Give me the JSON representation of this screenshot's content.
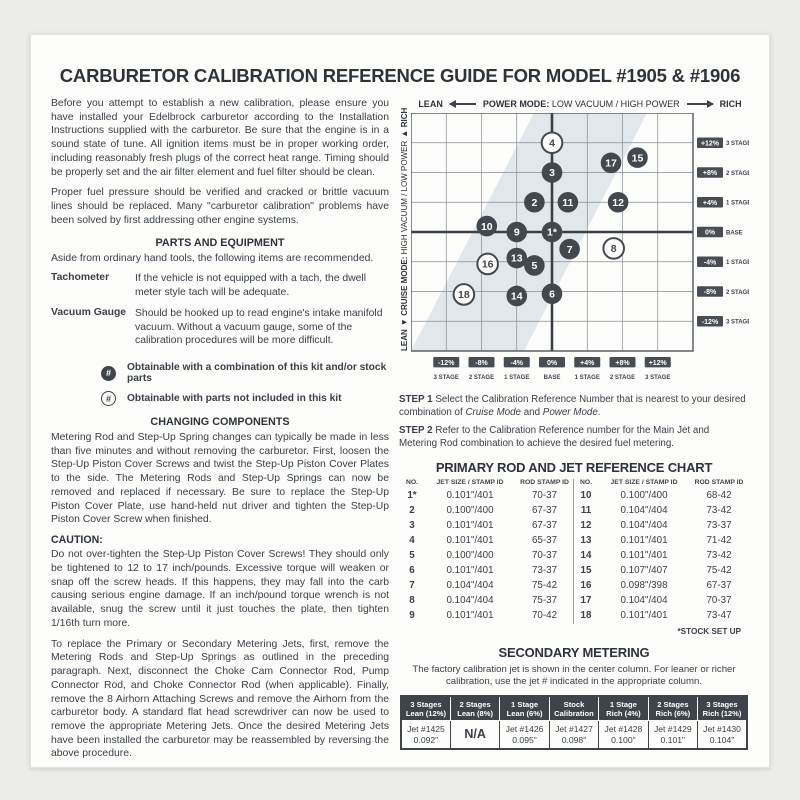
{
  "title": "CARBURETOR CALIBRATION REFERENCE GUIDE FOR MODEL #1905 & #1906",
  "left": {
    "intro_p1": "Before you attempt to establish a new calibration, please ensure you have installed your Edelbrock carburetor according to the Installation Instructions supplied with the carburetor. Be sure that the engine is in a sound state of tune. All ignition items must be in proper working order, including reasonably fresh plugs of the correct heat range. Timing should be properly set and the air filter element and fuel filter should be clean.",
    "intro_p2": "Proper fuel pressure should be verified and cracked or brittle vacuum lines should be replaced. Many \"carburetor calibration\" problems have been solved by first addressing other engine systems.",
    "parts_heading": "PARTS AND EQUIPMENT",
    "parts_intro": "Aside from ordinary hand tools, the following items are recommended.",
    "tools": [
      {
        "term": "Tachometer",
        "desc": "If the vehicle is not equipped with a tach, the dwell meter style tach will be adequate."
      },
      {
        "term": "Vacuum Gauge",
        "desc": "Should be hooked up to read engine's intake manifold vacuum. Without a vacuum gauge, some of the calibration procedures will be more difficult."
      }
    ],
    "legend": [
      {
        "symbol": "#",
        "style": "filled",
        "text": "Obtainable with a combination of this kit and/or stock parts"
      },
      {
        "symbol": "#",
        "style": "open",
        "text": "Obtainable with parts not included in this kit"
      }
    ],
    "changing_heading": "CHANGING COMPONENTS",
    "changing_p1": "Metering Rod and Step-Up Spring changes can typically be made in less than five minutes and without removing the carburetor. First, loosen the Step-Up Piston Cover Screws and twist the Step-Up Piston Cover Plates to the side. The Metering Rods and Step-Up Springs can now be removed and replaced if necessary. Be sure to replace the Step-Up Piston Cover Plate, use hand-held nut driver and tighten the Step-Up Piston Cover Screw when finished.",
    "caution_heading": "CAUTION:",
    "caution_p1": "Do not over-tighten the Step-Up Piston Cover Screws! They should only be tightened to 12 to 17 inch/pounds. Excessive torque will weaken or snap off the screw heads. If this happens, they may fall into the carb causing serious engine damage. If an inch/pound torque wrench is not available, snug the screw until it just touches the plate, then tighten 1/16th turn more.",
    "caution_p2": "To replace the Primary or Secondary Metering Jets, first, remove the Metering Rods and Step-Up Springs as outlined in the preceding paragraph. Next, disconnect the Choke Cam Connector Rod, Pump Connector Rod, and Choke Connector Rod (when applicable). Finally, remove the 8 Airhorn Attaching Screws and remove the Airhorn from the carburetor body. A standard flat head screwdriver can now be used to remove the appropriate Metering Jets. Once the desired Metering Jets have been installed the carburetor may be reassembled by reversing the above procedure."
  },
  "chart_data": {
    "type": "scatter",
    "title": "Calibration Reference Chart",
    "top_axis": {
      "left": "LEAN",
      "label_bold": "POWER MODE:",
      "label_rest": "LOW VACUUM / HIGH POWER",
      "right": "RICH"
    },
    "left_axis": {
      "bottom": "LEAN",
      "arrow_down": "◄",
      "label_bold": "CRUISE MODE:",
      "label_rest": "HIGH VACUUM / LOW POWER",
      "arrow_up": "►",
      "top": "RICH"
    },
    "x_ticks": [
      {
        "pct": "-12%",
        "stage": "3 STAGE"
      },
      {
        "pct": "-8%",
        "stage": "2 STAGE"
      },
      {
        "pct": "-4%",
        "stage": "1 STAGE"
      },
      {
        "pct": "0%",
        "stage": "BASE"
      },
      {
        "pct": "+4%",
        "stage": "1 STAGE"
      },
      {
        "pct": "+8%",
        "stage": "2 STAGE"
      },
      {
        "pct": "+12%",
        "stage": "3 STAGE"
      }
    ],
    "y_ticks": [
      {
        "pct": "+12%",
        "stage": "3 STAGE"
      },
      {
        "pct": "+8%",
        "stage": "2 STAGE"
      },
      {
        "pct": "+4%",
        "stage": "1 STAGE"
      },
      {
        "pct": "0%",
        "stage": "BASE"
      },
      {
        "pct": "-4%",
        "stage": "1 STAGE"
      },
      {
        "pct": "-8%",
        "stage": "2 STAGE"
      },
      {
        "pct": "-12%",
        "stage": "3 STAGE"
      }
    ],
    "axis_unit": "percent fuel flow change (power mode = x, cruise mode = y)",
    "xlim": [
      -16,
      16
    ],
    "ylim": [
      -16,
      16
    ],
    "point_styles": {
      "filled": "Obtainable with a combination of this kit and/or stock parts",
      "open": "Obtainable with parts not included in this kit"
    },
    "band_color": "#e2e7eb",
    "points": [
      {
        "id": "1*",
        "x": 0,
        "y": 0,
        "style": "filled"
      },
      {
        "id": "2",
        "x": -2,
        "y": 4,
        "style": "filled"
      },
      {
        "id": "3",
        "x": 0,
        "y": 8,
        "style": "filled"
      },
      {
        "id": "4",
        "x": 0,
        "y": 12,
        "style": "open"
      },
      {
        "id": "6",
        "x": 0,
        "y": -8.3,
        "style": "filled"
      },
      {
        "id": "7",
        "x": 2,
        "y": -2.3,
        "style": "filled"
      },
      {
        "id": "8",
        "x": 7,
        "y": -2.2,
        "style": "open"
      },
      {
        "id": "9",
        "x": -4,
        "y": 0,
        "style": "filled"
      },
      {
        "id": "10",
        "x": -7.4,
        "y": 0.8,
        "style": "filled"
      },
      {
        "id": "11",
        "x": 1.8,
        "y": 4,
        "style": "filled"
      },
      {
        "id": "12",
        "x": 7.5,
        "y": 4,
        "style": "filled"
      },
      {
        "id": "13",
        "x": -4,
        "y": -3.5,
        "style": "filled"
      },
      {
        "id": "5",
        "x": -2,
        "y": -4.5,
        "style": "filled"
      },
      {
        "id": "14",
        "x": -4,
        "y": -8.6,
        "style": "filled"
      },
      {
        "id": "15",
        "x": 9.7,
        "y": 10,
        "style": "filled"
      },
      {
        "id": "16",
        "x": -7.3,
        "y": -4.3,
        "style": "open"
      },
      {
        "id": "17",
        "x": 6.7,
        "y": 9.3,
        "style": "filled"
      },
      {
        "id": "18",
        "x": -10,
        "y": -8.4,
        "style": "open"
      }
    ]
  },
  "steps": [
    {
      "label": "STEP 1",
      "parts": [
        {
          "t": "Select the Calibration Reference Number that is nearest to your desired combination of "
        },
        {
          "t": "Cruise Mode",
          "i": true
        },
        {
          "t": " and "
        },
        {
          "t": "Power Mode",
          "i": true
        },
        {
          "t": "."
        }
      ]
    },
    {
      "label": "STEP 2",
      "parts": [
        {
          "t": "Refer to the Calibration Reference number for the Main Jet and Metering Rod combination to achieve the desired fuel metering."
        }
      ]
    }
  ],
  "primary_table": {
    "title": "PRIMARY ROD AND JET REFERENCE CHART",
    "headers": [
      "NO.",
      "JET SIZE / STAMP ID",
      "ROD STAMP ID"
    ],
    "rows_left": [
      [
        "1*",
        "0.101\"/401",
        "70-37"
      ],
      [
        "2",
        "0.100\"/400",
        "67-37"
      ],
      [
        "3",
        "0.101\"/401",
        "67-37"
      ],
      [
        "4",
        "0.101\"/401",
        "65-37"
      ],
      [
        "5",
        "0.100\"/400",
        "70-37"
      ],
      [
        "6",
        "0.101\"/401",
        "73-37"
      ],
      [
        "7",
        "0.104\"/404",
        "75-42"
      ],
      [
        "8",
        "0.104\"/404",
        "75-37"
      ],
      [
        "9",
        "0.101\"/401",
        "70-42"
      ]
    ],
    "rows_right": [
      [
        "10",
        "0.100\"/400",
        "68-42"
      ],
      [
        "11",
        "0.104\"/404",
        "73-42"
      ],
      [
        "12",
        "0.104\"/404",
        "73-37"
      ],
      [
        "13",
        "0.101\"/401",
        "71-42"
      ],
      [
        "14",
        "0.101\"/401",
        "73-42"
      ],
      [
        "15",
        "0.107\"/407",
        "75-42"
      ],
      [
        "16",
        "0.098\"/398",
        "67-37"
      ],
      [
        "17",
        "0.104\"/404",
        "70-37"
      ],
      [
        "18",
        "0.101\"/401",
        "73-47"
      ]
    ],
    "footnote": "*STOCK SET UP"
  },
  "secondary": {
    "title": "SECONDARY METERING",
    "description": "The factory calibration jet is shown in the center column. For leaner or richer calibration, use the jet # indicated in the appropriate column.",
    "columns": [
      {
        "header": [
          "3 Stages",
          "Lean (12%)"
        ],
        "jet": "Jet #1425",
        "size": "0.092\""
      },
      {
        "header": [
          "2 Stages",
          "Lean (8%)"
        ],
        "jet": "N/A",
        "size": ""
      },
      {
        "header": [
          "1 Stage",
          "Lean (6%)"
        ],
        "jet": "Jet #1426",
        "size": "0.095\""
      },
      {
        "header": [
          "Stock",
          "Calibration"
        ],
        "jet": "Jet #1427",
        "size": "0.098\""
      },
      {
        "header": [
          "1 Stage",
          "Rich (4%)"
        ],
        "jet": "Jet #1428",
        "size": "0.100\""
      },
      {
        "header": [
          "2 Stages",
          "Rich (6%)"
        ],
        "jet": "Jet #1429",
        "size": "0.101\""
      },
      {
        "header": [
          "3 Stages",
          "Rich (12%)"
        ],
        "jet": "Jet #1430",
        "size": "0.104\""
      }
    ]
  }
}
